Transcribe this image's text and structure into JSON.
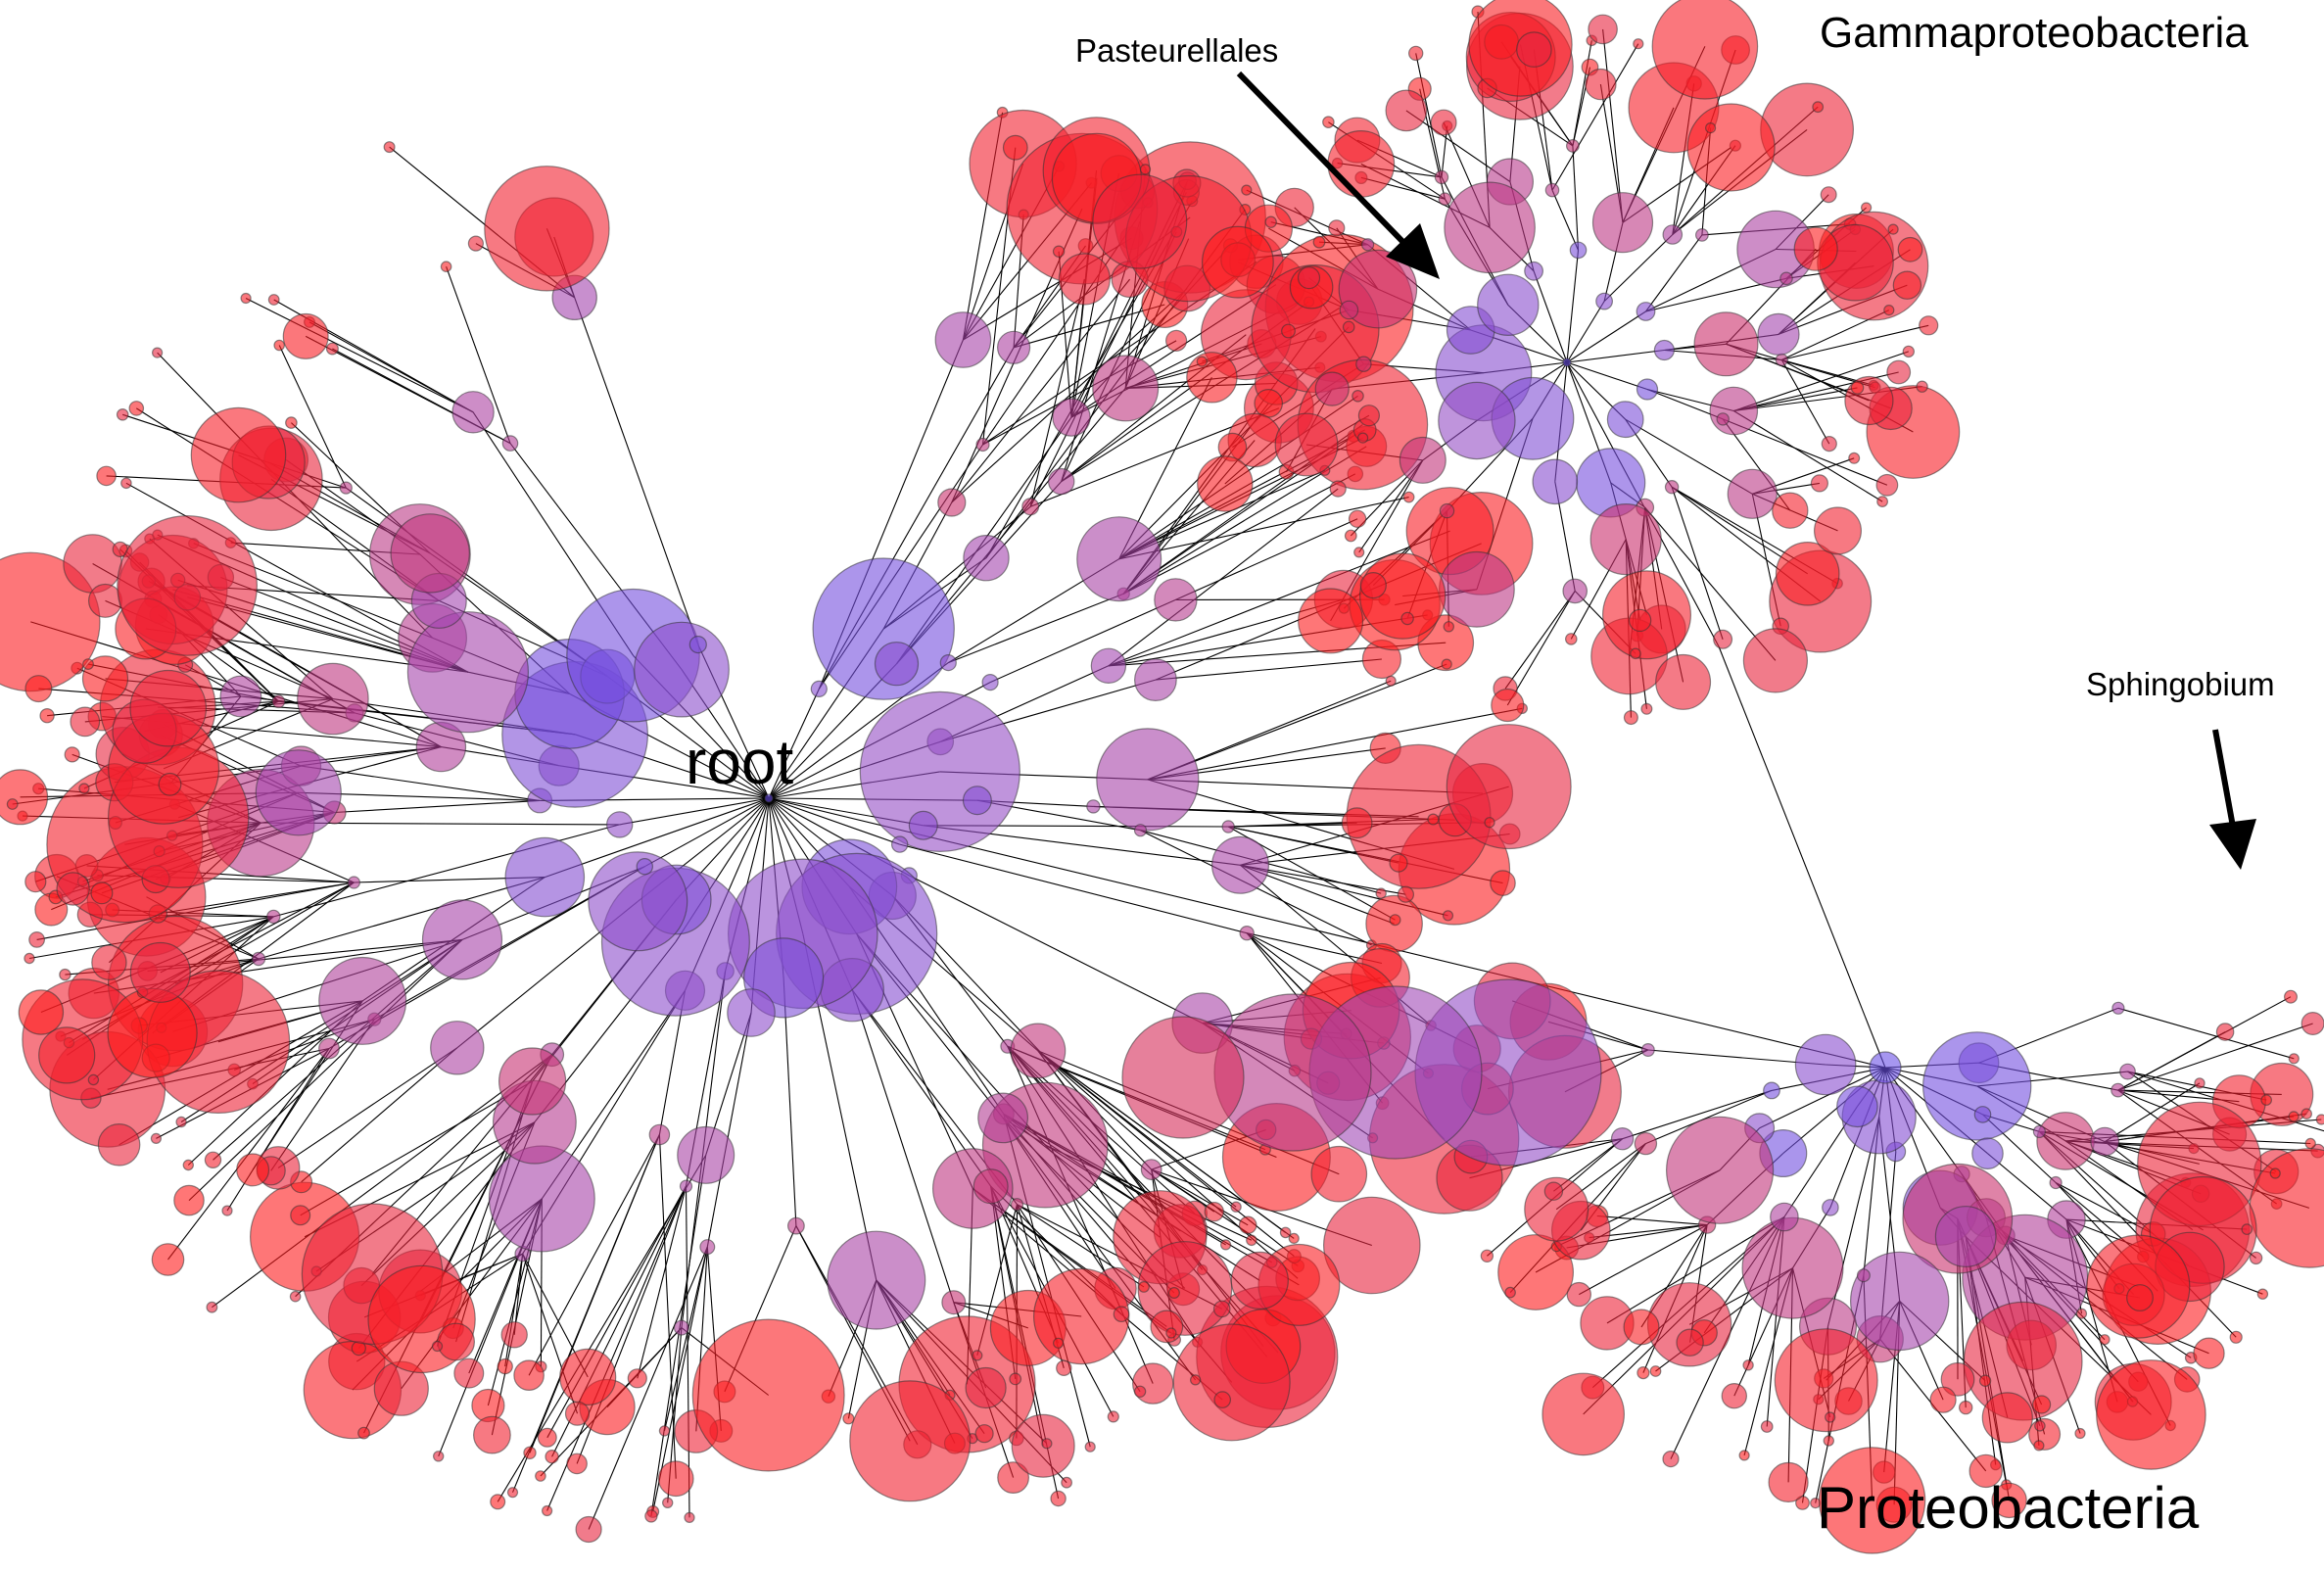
{
  "labels": {
    "root": "root",
    "gammaproteobacteria": "Gammaproteobacteria",
    "pasteurellales": "Pasteurellales",
    "sphingobium": "Sphingobium",
    "proteobacteria": "Proteobacteria"
  },
  "colors": {
    "leaf_red": "#ff1a1a",
    "mid_magenta": "#c8306e",
    "inner_purple": "#9a4bc0",
    "core_blue": "#6a50e6",
    "edge_black": "#000000"
  },
  "icons": {
    "pointer_pasteurellales": "arrow-icon",
    "pointer_sphingobium": "arrow-icon"
  }
}
